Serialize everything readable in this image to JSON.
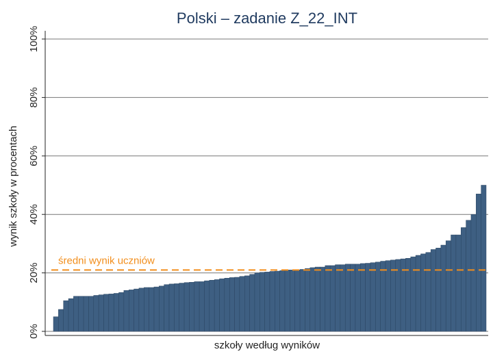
{
  "chart_data": {
    "type": "bar",
    "title": "Polski – zadanie Z_22_INT",
    "y_label": "wynik szkoły w procentach",
    "x_label": "szkoły według wyników",
    "color": "#3e5f82",
    "values": [
      5,
      7.5,
      10.5,
      11.2,
      12,
      12,
      12,
      12,
      12.3,
      12.5,
      12.7,
      12.8,
      13,
      13.3,
      14,
      14.2,
      14.5,
      14.8,
      15,
      15,
      15.2,
      15.5,
      16,
      16.2,
      16.3,
      16.5,
      16.7,
      16.8,
      17,
      17,
      17.3,
      17.5,
      17.7,
      18,
      18.2,
      18.4,
      18.5,
      18.8,
      19,
      19.5,
      20,
      20.2,
      20.3,
      20.5,
      20.6,
      20.8,
      21,
      21,
      21,
      21.2,
      21.5,
      21.8,
      22,
      22,
      22.5,
      22.5,
      22.8,
      22.8,
      23,
      23,
      23,
      23.2,
      23.3,
      23.5,
      23.7,
      24,
      24.2,
      24.4,
      24.6,
      24.8,
      25,
      25.5,
      26,
      26.5,
      27,
      28,
      28.5,
      29.5,
      31,
      33,
      33,
      35.5,
      38,
      40,
      47,
      50
    ],
    "ylim": [
      0,
      100
    ],
    "yticks": [
      {
        "value": 0,
        "label": "0%"
      },
      {
        "value": 20,
        "label": "20%"
      },
      {
        "value": 40,
        "label": "40%"
      },
      {
        "value": 60,
        "label": "60%"
      },
      {
        "value": 80,
        "label": "80%"
      },
      {
        "value": 100,
        "label": "100%"
      }
    ],
    "grid": true,
    "mean_line": {
      "value": 21,
      "label": "średni wynik uczniów",
      "color": "#f28e1c"
    }
  }
}
